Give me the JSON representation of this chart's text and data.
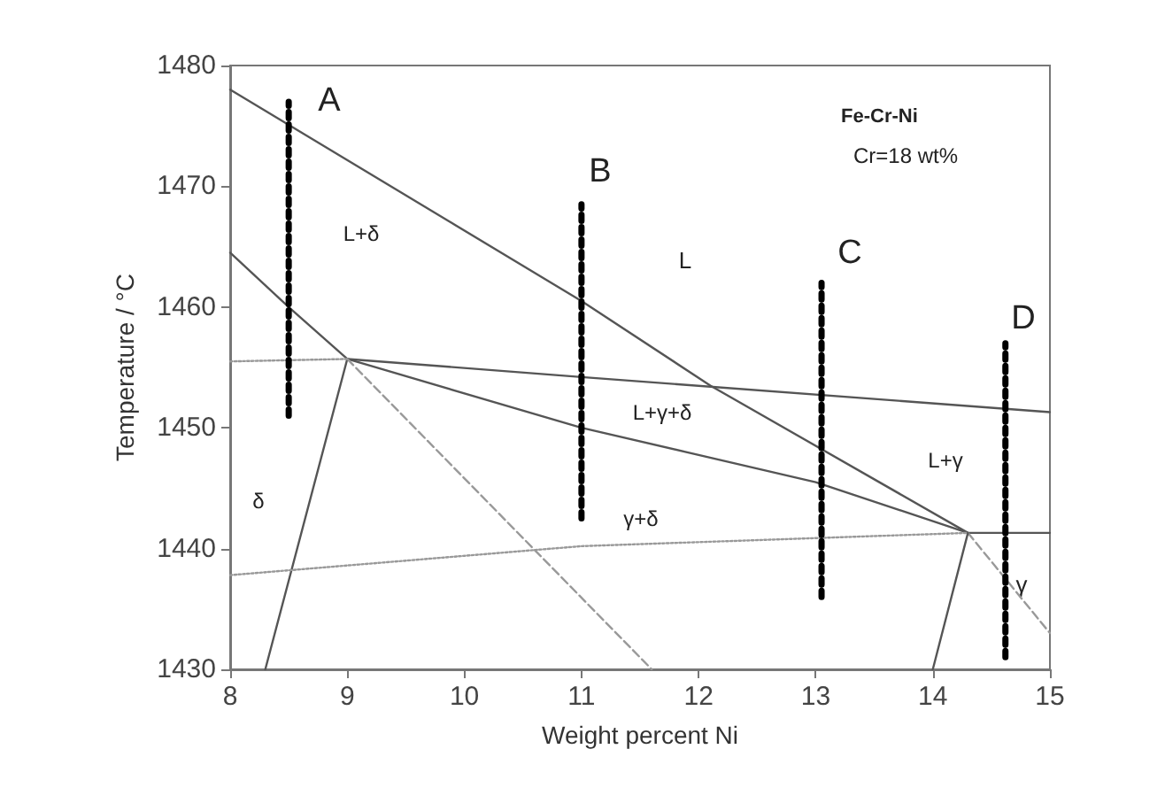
{
  "chart_data": {
    "type": "line",
    "xlabel": "Weight percent Ni",
    "ylabel": "Temperature / °C",
    "xlim": [
      8,
      15
    ],
    "xticks": [
      8,
      9,
      10,
      11,
      12,
      13,
      14,
      15
    ],
    "ylim": [
      1430,
      1480
    ],
    "yticks": [
      1430,
      1440,
      1450,
      1460,
      1470,
      1480
    ],
    "grid": false,
    "marker": "none",
    "series": [
      {
        "color": "#555555",
        "line_style": "solid",
        "x": [
          8,
          11,
          12.1,
          14.3,
          15
        ],
        "values": [
          1478,
          1460.5,
          1453.5,
          1441.3,
          1441.3
        ]
      },
      {
        "color": "#999999",
        "line_style": "dashed",
        "x": [
          14.3,
          15
        ],
        "values": [
          1441.3,
          1433
        ]
      },
      {
        "color": "#555555",
        "line_style": "solid",
        "x": [
          8,
          8.5,
          9,
          11,
          13,
          14.3,
          14
        ],
        "values": [
          1464.5,
          1460,
          1455.7,
          1450,
          1445.5,
          1441.3,
          1430
        ]
      },
      {
        "color": "#555555",
        "line_style": "solid",
        "x": [
          9,
          11,
          15
        ],
        "values": [
          1455.7,
          1454.2,
          1451.3
        ]
      },
      {
        "color": "#555555",
        "line_style": "solid",
        "x": [
          9,
          8.3
        ],
        "values": [
          1455.7,
          1430
        ]
      },
      {
        "color": "#999999",
        "line_style": "dotted",
        "x": [
          8,
          9
        ],
        "values": [
          1455.5,
          1455.7
        ]
      },
      {
        "color": "#999999",
        "line_style": "dotted",
        "x": [
          8,
          11,
          14.3
        ],
        "values": [
          1437.8,
          1440.2,
          1441.3
        ]
      },
      {
        "color": "#999999",
        "line_style": "dashed",
        "x": [
          9,
          11.6
        ],
        "values": [
          1455.7,
          1430
        ]
      },
      {
        "color": "#000000",
        "line_style": "dotted",
        "x": [
          8.5,
          8.5
        ],
        "values": [
          1451,
          1477
        ]
      },
      {
        "color": "#000000",
        "line_style": "dotted",
        "x": [
          11,
          11
        ],
        "values": [
          1442.5,
          1468.5
        ]
      },
      {
        "color": "#000000",
        "line_style": "dotted",
        "x": [
          13.05,
          13.05
        ],
        "values": [
          1436,
          1462
        ]
      },
      {
        "color": "#000000",
        "line_style": "dotted",
        "x": [
          14.62,
          14.62
        ],
        "values": [
          1431,
          1457
        ]
      }
    ],
    "annotations": [
      "A",
      "B",
      "C",
      "D",
      "L+δ",
      "L",
      "L+γ+δ",
      "γ+δ",
      "L+γ",
      "δ",
      "γ",
      "Fe-Cr-Ni",
      "Cr=18 wt%"
    ]
  }
}
